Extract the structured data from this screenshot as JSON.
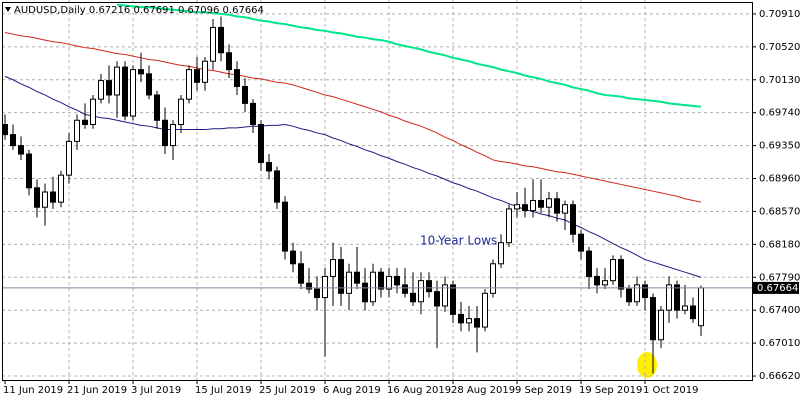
{
  "chart_data": {
    "type": "candlestick",
    "title": "AUDUSD,Daily",
    "annotation": "10-Year Lows",
    "categories": [
      "11 Jun 2019",
      null,
      null,
      null,
      null,
      null,
      null,
      null,
      "21 Jun 2019",
      null,
      null,
      null,
      null,
      null,
      null,
      null,
      "3 Jul 2019",
      null,
      null,
      null,
      null,
      null,
      null,
      null,
      "15 Jul 2019",
      null,
      null,
      null,
      null,
      null,
      null,
      null,
      "25 Jul 2019",
      null,
      null,
      null,
      null,
      null,
      null,
      null,
      "6 Aug 2019",
      null,
      null,
      null,
      null,
      null,
      null,
      null,
      "16 Aug 2019",
      null,
      null,
      null,
      null,
      null,
      null,
      null,
      "28 Aug 2019",
      null,
      null,
      null,
      null,
      null,
      null,
      null,
      "9 Sep 2019",
      null,
      null,
      null,
      null,
      null,
      null,
      null,
      "19 Sep 2019",
      null,
      null,
      null,
      null,
      null,
      null,
      null,
      "1 Oct 2019",
      null,
      null,
      null,
      null,
      null,
      null,
      null
    ],
    "open": [
      0.696,
      0.6948,
      0.6935,
      0.6925,
      0.6885,
      0.6862,
      0.688,
      0.6868,
      0.69,
      0.694,
      0.6965,
      0.696,
      0.699,
      0.7012,
      0.6995,
      0.7028,
      0.697,
      0.7025,
      0.702,
      0.6995,
      0.6965,
      0.6935,
      0.696,
      0.699,
      0.7025,
      0.701,
      0.7035,
      0.7075,
      0.7045,
      0.7025,
      0.7005,
      0.6985,
      0.696,
      0.6915,
      0.6905,
      0.6868,
      0.681,
      0.6795,
      0.6772,
      0.6765,
      0.6755,
      0.678,
      0.68,
      0.676,
      0.6785,
      0.6772,
      0.675,
      0.6785,
      0.6765,
      0.678,
      0.677,
      0.676,
      0.675,
      0.6775,
      0.6762,
      0.6745,
      0.677,
      0.6735,
      0.6725,
      0.673,
      0.672,
      0.676,
      0.6795,
      0.682,
      0.686,
      0.6865,
      0.6858,
      0.687,
      0.6862,
      0.6872,
      0.6855,
      0.6865,
      0.683,
      0.681,
      0.678,
      0.677,
      0.6775,
      0.68,
      0.6765,
      0.675,
      0.677,
      0.6755,
      0.6705,
      0.674,
      0.677,
      0.674,
      0.6745,
      0.67216
    ],
    "high": [
      0.6972,
      0.696,
      0.6946,
      0.693,
      0.6895,
      0.689,
      0.6898,
      0.6905,
      0.695,
      0.6972,
      0.6985,
      0.6995,
      0.702,
      0.703,
      0.7035,
      0.7035,
      0.703,
      0.7045,
      0.703,
      0.7,
      0.698,
      0.6965,
      0.6995,
      0.703,
      0.704,
      0.704,
      0.7085,
      0.7088,
      0.7055,
      0.7035,
      0.7015,
      0.699,
      0.6965,
      0.6925,
      0.691,
      0.6875,
      0.682,
      0.681,
      0.679,
      0.678,
      0.679,
      0.682,
      0.6815,
      0.6795,
      0.6815,
      0.679,
      0.6795,
      0.679,
      0.679,
      0.679,
      0.679,
      0.6785,
      0.6785,
      0.6785,
      0.6775,
      0.678,
      0.6775,
      0.675,
      0.6745,
      0.6745,
      0.6765,
      0.68,
      0.683,
      0.6865,
      0.688,
      0.6885,
      0.6895,
      0.6895,
      0.688,
      0.688,
      0.687,
      0.687,
      0.6835,
      0.6815,
      0.679,
      0.679,
      0.6805,
      0.6805,
      0.677,
      0.678,
      0.6775,
      0.676,
      0.6745,
      0.678,
      0.6775,
      0.677,
      0.6755,
      0.67691
    ],
    "low": [
      0.6942,
      0.693,
      0.6918,
      0.6876,
      0.685,
      0.684,
      0.686,
      0.6862,
      0.689,
      0.693,
      0.6955,
      0.6955,
      0.6985,
      0.6985,
      0.6968,
      0.6965,
      0.6965,
      0.701,
      0.699,
      0.6955,
      0.6925,
      0.6918,
      0.695,
      0.6985,
      0.7,
      0.7,
      0.7025,
      0.7035,
      0.7015,
      0.6995,
      0.6975,
      0.695,
      0.6905,
      0.6895,
      0.686,
      0.68,
      0.6785,
      0.6765,
      0.676,
      0.674,
      0.6685,
      0.6745,
      0.6745,
      0.674,
      0.6765,
      0.674,
      0.6745,
      0.6755,
      0.6755,
      0.676,
      0.6755,
      0.6745,
      0.6735,
      0.6755,
      0.6695,
      0.6738,
      0.6725,
      0.6715,
      0.6715,
      0.669,
      0.6715,
      0.6755,
      0.679,
      0.6815,
      0.685,
      0.685,
      0.685,
      0.6855,
      0.685,
      0.6845,
      0.6835,
      0.682,
      0.68,
      0.6765,
      0.676,
      0.6765,
      0.677,
      0.6755,
      0.6745,
      0.6745,
      0.674,
      0.6665,
      0.6695,
      0.6725,
      0.673,
      0.6735,
      0.6725,
      0.67096
    ],
    "close": [
      0.6948,
      0.6935,
      0.6925,
      0.6885,
      0.6862,
      0.688,
      0.6868,
      0.69,
      0.694,
      0.6965,
      0.696,
      0.699,
      0.7012,
      0.6995,
      0.7028,
      0.697,
      0.7025,
      0.702,
      0.6995,
      0.6965,
      0.6935,
      0.696,
      0.699,
      0.7025,
      0.701,
      0.7035,
      0.7075,
      0.7045,
      0.7025,
      0.7005,
      0.6985,
      0.696,
      0.6915,
      0.6905,
      0.6868,
      0.681,
      0.6795,
      0.6772,
      0.6765,
      0.6755,
      0.678,
      0.68,
      0.676,
      0.6785,
      0.6772,
      0.675,
      0.6785,
      0.6765,
      0.678,
      0.677,
      0.676,
      0.675,
      0.6775,
      0.6762,
      0.6745,
      0.677,
      0.6735,
      0.6725,
      0.673,
      0.672,
      0.676,
      0.6795,
      0.682,
      0.686,
      0.6865,
      0.6858,
      0.687,
      0.6862,
      0.6872,
      0.6855,
      0.6865,
      0.683,
      0.681,
      0.678,
      0.677,
      0.6775,
      0.68,
      0.6765,
      0.675,
      0.677,
      0.6755,
      0.6705,
      0.674,
      0.677,
      0.674,
      0.6745,
      0.673,
      0.67664
    ],
    "series": [
      {
        "color": "#1c1c80",
        "values": [
          0.7017,
          0.7013,
          0.7008,
          0.7004,
          0.6999,
          0.6995,
          0.699,
          0.6986,
          0.6981,
          0.6977,
          0.6972,
          0.697,
          0.6968,
          0.6967,
          0.6965,
          0.6963,
          0.6961,
          0.6959,
          0.6958,
          0.6956,
          0.6954,
          0.6954,
          0.6954,
          0.6954,
          0.6954,
          0.6954,
          0.6955,
          0.6955,
          0.6956,
          0.6956,
          0.6957,
          0.6958,
          0.6958,
          0.6959,
          0.6959,
          0.696,
          0.6958,
          0.6955,
          0.6953,
          0.695,
          0.6948,
          0.6944,
          0.6941,
          0.6937,
          0.6934,
          0.693,
          0.6927,
          0.6923,
          0.692,
          0.6916,
          0.6913,
          0.6909,
          0.6906,
          0.6902,
          0.6899,
          0.6895,
          0.6891,
          0.6888,
          0.6884,
          0.6881,
          0.6877,
          0.6873,
          0.687,
          0.6866,
          0.6863,
          0.6859,
          0.6857,
          0.6854,
          0.6852,
          0.6849,
          0.6847,
          0.6842,
          0.6838,
          0.6833,
          0.6829,
          0.6824,
          0.6819,
          0.6814,
          0.681,
          0.6805,
          0.68,
          0.6797,
          0.6794,
          0.6791,
          0.6788,
          0.6785,
          0.6782,
          0.6779
        ]
      },
      {
        "color": "#d0281e",
        "values": [
          0.7069,
          0.7067,
          0.7065,
          0.7064,
          0.7062,
          0.706,
          0.7058,
          0.7057,
          0.7055,
          0.7053,
          0.7051,
          0.705,
          0.7048,
          0.7046,
          0.7044,
          0.7043,
          0.7041,
          0.7039,
          0.7037,
          0.7036,
          0.7034,
          0.7032,
          0.703,
          0.7029,
          0.7027,
          0.7025,
          0.7024,
          0.7022,
          0.702,
          0.7019,
          0.7017,
          0.7015,
          0.7014,
          0.7012,
          0.701,
          0.7009,
          0.7007,
          0.7004,
          0.7001,
          0.6998,
          0.6995,
          0.6993,
          0.699,
          0.6987,
          0.6984,
          0.6981,
          0.6978,
          0.6975,
          0.6971,
          0.6968,
          0.6964,
          0.6961,
          0.6958,
          0.6954,
          0.695,
          0.6945,
          0.6941,
          0.6936,
          0.6932,
          0.6927,
          0.6923,
          0.6918,
          0.6916,
          0.6915,
          0.6913,
          0.6911,
          0.691,
          0.6908,
          0.6906,
          0.6904,
          0.6903,
          0.6901,
          0.6899,
          0.6897,
          0.6895,
          0.6893,
          0.6891,
          0.6889,
          0.6887,
          0.6885,
          0.6883,
          0.6881,
          0.6879,
          0.6877,
          0.6875,
          0.6872,
          0.687,
          0.6868
        ]
      },
      {
        "color": "#00e68c",
        "values": [
          null,
          null,
          null,
          null,
          null,
          null,
          null,
          null,
          null,
          null,
          null,
          null,
          null,
          null,
          0.7102,
          0.7101,
          0.71,
          0.7099,
          0.7099,
          0.7098,
          0.7097,
          0.7096,
          0.7095,
          0.7094,
          0.7093,
          0.7093,
          0.7092,
          0.7091,
          0.709,
          0.7088,
          0.7087,
          0.7085,
          0.7083,
          0.7082,
          0.708,
          0.7079,
          0.7077,
          0.7075,
          0.7074,
          0.7072,
          0.7071,
          0.7069,
          0.7068,
          0.7066,
          0.7064,
          0.7063,
          0.7061,
          0.706,
          0.7058,
          0.7055,
          0.7053,
          0.7051,
          0.7049,
          0.7046,
          0.7044,
          0.7042,
          0.7039,
          0.7037,
          0.7035,
          0.7032,
          0.703,
          0.7028,
          0.7025,
          0.7023,
          0.7021,
          0.7018,
          0.7016,
          0.7014,
          0.7011,
          0.7009,
          0.7007,
          0.7004,
          0.7002,
          0.7,
          0.6997,
          0.6995,
          0.6994,
          0.6993,
          0.6991,
          0.699,
          0.6989,
          0.6988,
          0.6987,
          0.6985,
          0.6984,
          0.6983,
          0.6982,
          0.6981
        ]
      }
    ],
    "ylim": [
      0.66573,
      0.71075
    ],
    "yticks": [
      {
        "value": 0.7091,
        "label": "0.70910"
      },
      {
        "value": 0.7052,
        "label": "0.70520"
      },
      {
        "value": 0.7013,
        "label": "0.70130"
      },
      {
        "value": 0.6974,
        "label": "0.69740"
      },
      {
        "value": 0.6935,
        "label": "0.69350"
      },
      {
        "value": 0.6896,
        "label": "0.68960"
      },
      {
        "value": 0.6857,
        "label": "0.68570"
      },
      {
        "value": 0.6818,
        "label": "0.68180"
      },
      {
        "value": 0.6779,
        "label": "0.67790"
      },
      {
        "value": 0.674,
        "label": "0.67400"
      },
      {
        "value": 0.6701,
        "label": "0.67010"
      },
      {
        "value": 0.6662,
        "label": "0.66620"
      }
    ],
    "grid": true
  }
}
